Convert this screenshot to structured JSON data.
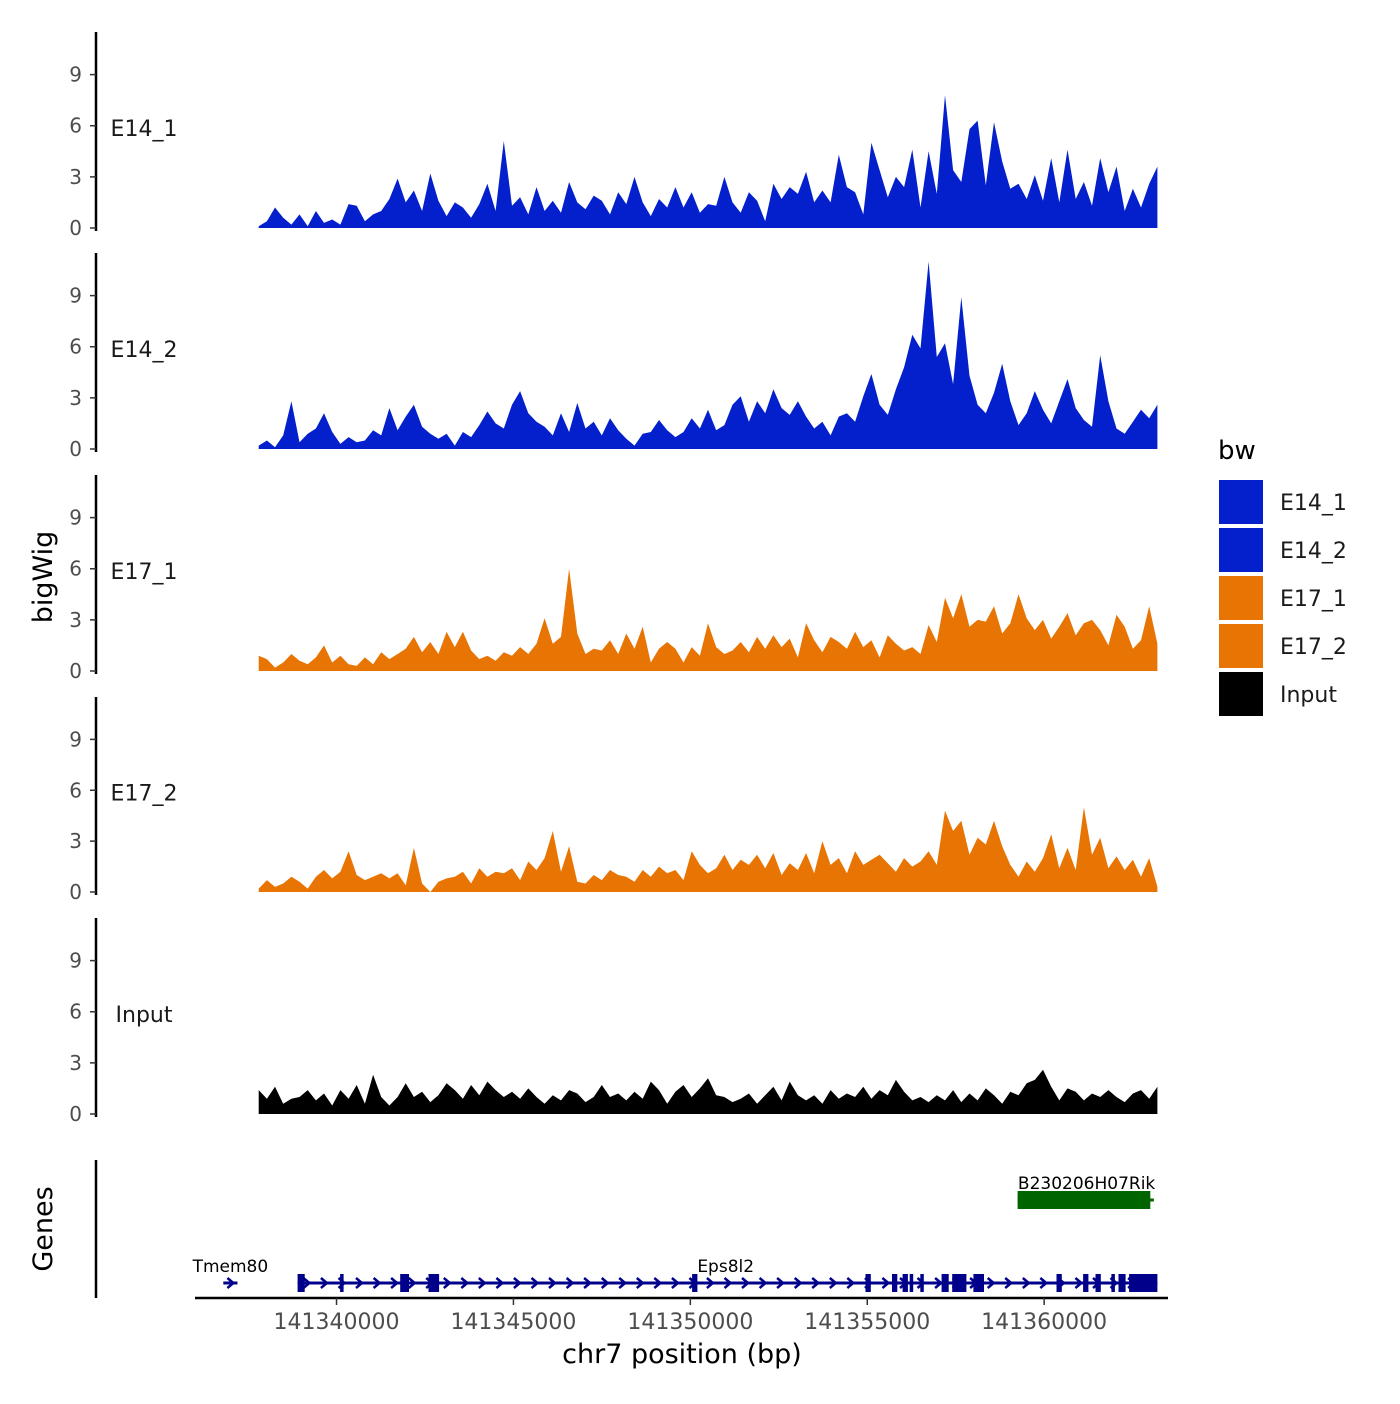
{
  "chart_data": {
    "type": "area",
    "title": "",
    "ylabel": "bigWig",
    "genes_panel_label": "Genes",
    "xlabel": "chr7 position (bp)",
    "x_range": [
      141336000,
      141363500
    ],
    "x_ticks": [
      141340000,
      141345000,
      141350000,
      141355000,
      141360000
    ],
    "x_tick_labels": [
      "141340000",
      "141345000",
      "141350000",
      "141355000",
      "141360000"
    ],
    "ylim": [
      0,
      11.5
    ],
    "y_ticks": [
      0,
      3,
      6,
      9
    ],
    "y_tick_labels": [
      "0",
      "3",
      "6",
      "9"
    ],
    "legend": {
      "title": "bw",
      "position": "right",
      "entries": [
        {
          "label": "E14_1",
          "color": "#0320CC"
        },
        {
          "label": "E14_2",
          "color": "#0320CC"
        },
        {
          "label": "E17_1",
          "color": "#E87503"
        },
        {
          "label": "E17_2",
          "color": "#E87503"
        },
        {
          "label": "Input",
          "color": "#000000"
        }
      ]
    },
    "tracks": [
      {
        "name": "E14_1",
        "color": "#0320CC",
        "x_start": 141337800,
        "x_end": 141363200,
        "values": [
          0.1,
          0.4,
          1.2,
          0.6,
          0.2,
          0.8,
          0.1,
          1.0,
          0.3,
          0.5,
          0.2,
          1.4,
          1.3,
          0.4,
          0.8,
          1.0,
          1.7,
          2.9,
          1.5,
          2.2,
          1.0,
          3.2,
          1.6,
          0.7,
          1.5,
          1.2,
          0.6,
          1.4,
          2.6,
          1.0,
          5.1,
          1.3,
          1.8,
          0.8,
          2.4,
          1.0,
          1.6,
          0.9,
          2.7,
          1.5,
          1.1,
          1.9,
          1.6,
          0.8,
          2.1,
          1.4,
          3.0,
          1.5,
          0.7,
          1.7,
          1.2,
          2.4,
          1.2,
          2.1,
          0.9,
          1.4,
          1.3,
          3.0,
          1.5,
          0.9,
          2.1,
          1.6,
          0.4,
          2.6,
          1.7,
          2.4,
          2.0,
          3.3,
          1.5,
          2.2,
          1.5,
          4.3,
          2.4,
          2.1,
          0.8,
          5.0,
          3.4,
          1.8,
          3.0,
          2.4,
          4.6,
          1.2,
          4.5,
          2.0,
          7.8,
          3.4,
          2.7,
          5.8,
          6.3,
          2.5,
          6.2,
          3.9,
          2.3,
          2.6,
          1.7,
          3.1,
          1.6,
          4.1,
          1.5,
          4.6,
          1.7,
          2.7,
          1.3,
          4.1,
          2.1,
          3.6,
          1.0,
          2.3,
          1.2,
          2.6,
          3.6
        ]
      },
      {
        "name": "E14_2",
        "color": "#0320CC",
        "x_start": 141337800,
        "x_end": 141363200,
        "values": [
          0.2,
          0.5,
          0.1,
          0.8,
          2.8,
          0.4,
          0.9,
          1.2,
          2.1,
          1.0,
          0.3,
          0.7,
          0.4,
          0.5,
          1.1,
          0.8,
          2.4,
          1.1,
          1.9,
          2.6,
          1.3,
          0.9,
          0.6,
          0.9,
          0.2,
          1.0,
          0.7,
          1.4,
          2.2,
          1.5,
          1.2,
          2.6,
          3.4,
          2.1,
          1.6,
          1.3,
          0.8,
          2.1,
          1.0,
          2.7,
          1.2,
          1.6,
          0.8,
          1.8,
          1.1,
          0.6,
          0.2,
          0.9,
          1.0,
          1.7,
          1.1,
          0.7,
          1.0,
          1.8,
          1.2,
          2.3,
          1.1,
          1.4,
          2.6,
          3.1,
          1.6,
          2.8,
          2.1,
          3.5,
          2.4,
          2.0,
          2.8,
          1.9,
          1.2,
          1.6,
          0.8,
          1.9,
          2.1,
          1.6,
          3.1,
          4.4,
          2.6,
          2.0,
          3.5,
          4.8,
          6.7,
          5.9,
          11.0,
          5.4,
          6.2,
          3.8,
          8.9,
          4.3,
          2.6,
          2.1,
          3.3,
          5.0,
          2.8,
          1.4,
          2.1,
          3.4,
          2.3,
          1.5,
          2.8,
          4.1,
          2.4,
          1.7,
          1.3,
          5.5,
          2.8,
          1.2,
          0.9,
          1.6,
          2.3,
          1.8,
          2.6
        ]
      },
      {
        "name": "E17_1",
        "color": "#E87503",
        "x_start": 141337800,
        "x_end": 141363200,
        "values": [
          0.9,
          0.7,
          0.2,
          0.5,
          1.0,
          0.6,
          0.4,
          0.8,
          1.5,
          0.5,
          0.9,
          0.4,
          0.3,
          0.8,
          0.4,
          1.1,
          0.7,
          1.0,
          1.3,
          2.0,
          1.1,
          1.7,
          1.0,
          2.3,
          1.4,
          2.3,
          1.2,
          0.7,
          0.9,
          0.6,
          1.1,
          0.9,
          1.4,
          1.0,
          1.6,
          3.1,
          1.6,
          2.0,
          6.0,
          2.2,
          1.0,
          1.3,
          1.2,
          1.8,
          1.0,
          2.2,
          1.3,
          2.6,
          0.5,
          1.3,
          1.7,
          1.3,
          0.5,
          1.4,
          0.9,
          2.8,
          1.4,
          1.0,
          1.2,
          1.7,
          1.1,
          2.0,
          1.3,
          2.1,
          1.4,
          1.9,
          0.8,
          2.8,
          1.8,
          1.1,
          2.0,
          1.7,
          1.3,
          2.3,
          1.4,
          1.8,
          0.8,
          2.1,
          1.6,
          1.2,
          1.4,
          1.0,
          2.7,
          1.7,
          4.3,
          3.1,
          4.5,
          2.6,
          3.0,
          2.9,
          3.8,
          2.2,
          2.8,
          4.5,
          3.1,
          2.4,
          3.0,
          1.9,
          2.6,
          3.4,
          2.1,
          2.8,
          3.0,
          2.4,
          1.5,
          3.3,
          2.6,
          1.3,
          1.8,
          3.8,
          1.6
        ]
      },
      {
        "name": "E17_2",
        "color": "#E87503",
        "x_start": 141337800,
        "x_end": 141363200,
        "values": [
          0.2,
          0.7,
          0.3,
          0.5,
          0.9,
          0.6,
          0.2,
          0.9,
          1.3,
          0.8,
          1.2,
          2.4,
          1.0,
          0.7,
          0.9,
          1.1,
          0.8,
          1.1,
          0.4,
          2.6,
          0.5,
          0.0,
          0.6,
          0.8,
          0.9,
          1.2,
          0.5,
          1.4,
          0.9,
          1.2,
          1.1,
          1.4,
          0.7,
          1.8,
          1.3,
          2.0,
          3.6,
          1.2,
          2.7,
          0.6,
          0.5,
          1.0,
          0.7,
          1.3,
          1.0,
          0.9,
          0.6,
          1.3,
          0.9,
          1.5,
          1.1,
          1.3,
          0.7,
          2.4,
          1.6,
          1.1,
          1.4,
          2.2,
          1.3,
          1.9,
          1.6,
          2.2,
          1.4,
          2.3,
          1.0,
          1.7,
          1.3,
          2.3,
          1.1,
          3.0,
          1.6,
          2.0,
          1.1,
          2.4,
          1.6,
          1.9,
          2.2,
          1.7,
          1.2,
          2.0,
          1.5,
          1.8,
          2.4,
          1.6,
          4.8,
          3.6,
          4.2,
          2.2,
          3.2,
          2.8,
          4.2,
          2.7,
          1.6,
          0.9,
          1.8,
          1.2,
          2.0,
          3.4,
          1.4,
          2.6,
          1.3,
          5.0,
          2.2,
          3.2,
          1.4,
          2.1,
          1.3,
          1.9,
          0.9,
          2.0,
          0.3
        ]
      },
      {
        "name": "Input",
        "color": "#000000",
        "x_start": 141337800,
        "x_end": 141363200,
        "values": [
          1.4,
          0.9,
          1.6,
          0.6,
          0.9,
          1.0,
          1.4,
          0.8,
          1.2,
          0.5,
          1.4,
          0.9,
          1.7,
          0.6,
          2.3,
          1.0,
          0.5,
          1.0,
          1.8,
          1.0,
          1.3,
          0.7,
          1.1,
          1.8,
          1.4,
          0.9,
          1.7,
          1.1,
          1.9,
          1.4,
          1.0,
          1.3,
          0.9,
          1.5,
          1.0,
          0.6,
          1.1,
          0.8,
          1.4,
          1.2,
          0.7,
          1.0,
          1.7,
          1.0,
          1.2,
          0.8,
          1.3,
          0.9,
          1.9,
          1.4,
          0.6,
          1.3,
          1.7,
          1.0,
          1.5,
          2.1,
          1.1,
          1.0,
          0.7,
          0.9,
          1.2,
          0.6,
          1.1,
          1.6,
          0.8,
          1.9,
          1.1,
          0.8,
          1.1,
          0.6,
          1.4,
          0.9,
          1.2,
          1.0,
          1.6,
          0.9,
          1.4,
          1.1,
          2.0,
          1.3,
          0.8,
          1.0,
          0.7,
          1.1,
          0.8,
          1.4,
          0.7,
          1.2,
          0.8,
          1.5,
          1.1,
          0.6,
          1.3,
          1.1,
          1.8,
          2.0,
          2.6,
          1.6,
          0.8,
          1.5,
          1.3,
          0.8,
          1.2,
          1.0,
          1.4,
          1.0,
          0.7,
          1.2,
          1.4,
          0.9,
          1.6
        ]
      }
    ],
    "genes": [
      {
        "name": "Tmem80",
        "color": "#00008B",
        "strand": "+",
        "row": 1,
        "start": 141336800,
        "end": 141337200,
        "label_at": 141337000,
        "exons": []
      },
      {
        "name": "Eps8l2",
        "color": "#00008B",
        "strand": "+",
        "row": 1,
        "start": 141338900,
        "end": 141363200,
        "label_at": 141351000,
        "exons": [
          [
            141338900,
            141339100
          ],
          [
            141340100,
            141340200
          ],
          [
            141341800,
            141342050
          ],
          [
            141342600,
            141342900
          ],
          [
            141350050,
            141350200
          ],
          [
            141354950,
            141355100
          ],
          [
            141355700,
            141355850
          ],
          [
            141356000,
            141356150
          ],
          [
            141356200,
            141356300
          ],
          [
            141356500,
            141356600
          ],
          [
            141357100,
            141357300
          ],
          [
            141357400,
            141357800
          ],
          [
            141358000,
            141358300
          ],
          [
            141360350,
            141360500
          ],
          [
            141361100,
            141361250
          ],
          [
            141361450,
            141361600
          ],
          [
            141361900,
            141362000
          ],
          [
            141362100,
            141362300
          ],
          [
            141362400,
            141363200
          ]
        ]
      },
      {
        "name": "B230206H07Rik",
        "color": "#006400",
        "strand": "+",
        "row": 0,
        "start": 141359250,
        "end": 141363100,
        "label_at": 141361200,
        "exons": [
          [
            141359250,
            141363000
          ]
        ]
      }
    ]
  }
}
